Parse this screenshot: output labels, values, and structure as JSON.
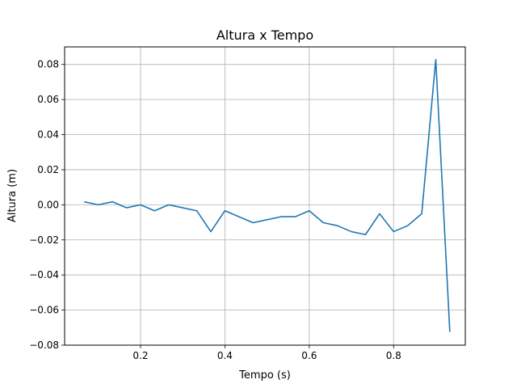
{
  "chart_data": {
    "type": "line",
    "title": "Altura x Tempo",
    "xlabel": "Tempo (s)",
    "ylabel": "Altura (m)",
    "xlim": [
      0.02,
      0.97
    ],
    "ylim": [
      -0.08,
      0.09
    ],
    "grid": true,
    "xticks": [
      0.2,
      0.4,
      0.6,
      0.8
    ],
    "xtick_labels": [
      "0.2",
      "0.4",
      "0.6",
      "0.8"
    ],
    "yticks": [
      -0.08,
      -0.06,
      -0.04,
      -0.02,
      0.0,
      0.02,
      0.04,
      0.06,
      0.08
    ],
    "ytick_labels": [
      "−0.08",
      "−0.06",
      "−0.04",
      "−0.02",
      "0.00",
      "0.02",
      "0.04",
      "0.06",
      "0.08"
    ],
    "line_color": "#1f77b4",
    "series": [
      {
        "x": [
          0.0667,
          0.1,
          0.1333,
          0.1667,
          0.2,
          0.2333,
          0.2667,
          0.3,
          0.3333,
          0.3667,
          0.4,
          0.4333,
          0.4667,
          0.5,
          0.5333,
          0.5667,
          0.6,
          0.6333,
          0.6667,
          0.7,
          0.7333,
          0.7667,
          0.8,
          0.8333,
          0.8667,
          0.9,
          0.9333
        ],
        "y": [
          0.0017,
          0.0,
          0.0017,
          -0.0017,
          0.0,
          -0.0034,
          0.0,
          -0.0017,
          -0.0034,
          -0.0153,
          -0.0034,
          -0.0068,
          -0.0102,
          -0.0085,
          -0.0068,
          -0.0068,
          -0.0034,
          -0.0102,
          -0.0119,
          -0.0153,
          -0.017,
          -0.0051,
          -0.0153,
          -0.0119,
          -0.0051,
          0.0828,
          -0.0725
        ]
      }
    ]
  }
}
